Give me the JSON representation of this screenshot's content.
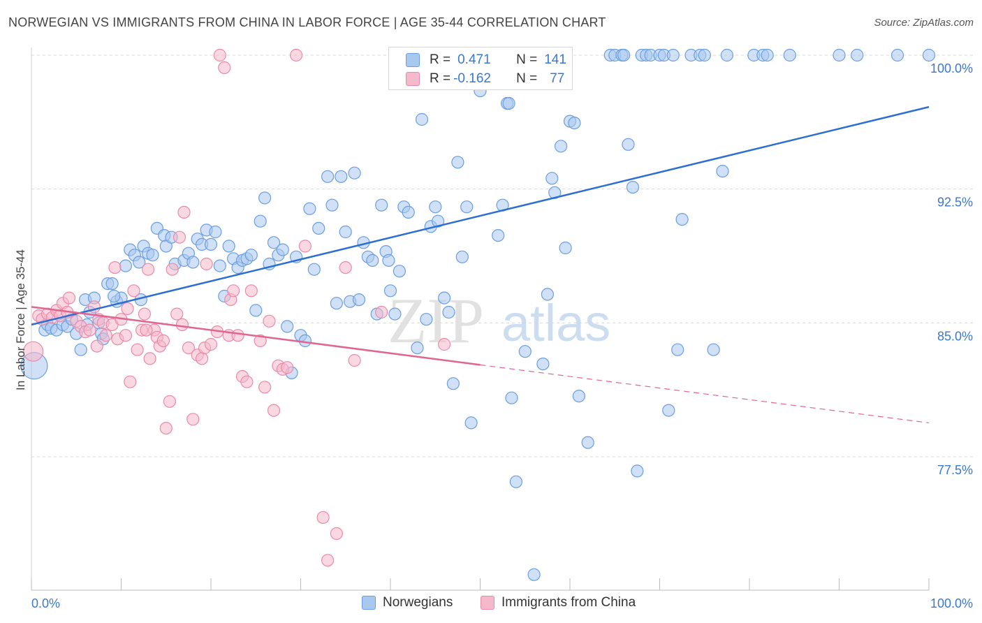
{
  "title": "NORWEGIAN VS IMMIGRANTS FROM CHINA IN LABOR FORCE | AGE 35-44 CORRELATION CHART",
  "source": "Source: ZipAtlas.com",
  "watermark": {
    "zip": "ZIP",
    "atlas": "atlas"
  },
  "colors": {
    "blue_fill": "#a9c8f0",
    "blue_stroke": "#6a9ee0",
    "blue_line": "#2c6fd0",
    "pink_fill": "#f6b8cb",
    "pink_stroke": "#ea8aaa",
    "pink_line": "#e06690",
    "axis_text": "#3a78d0",
    "grid": "#d9d9d9"
  },
  "legend": {
    "rows": [
      {
        "r_label": "R = ",
        "r_value": "0.471",
        "n_label": "N = ",
        "n_value": "141"
      },
      {
        "r_label": "R = ",
        "r_value": "-0.162",
        "n_label": "N = ",
        "n_value": "77"
      }
    ]
  },
  "chart_data": {
    "type": "scatter",
    "title": "NORWEGIAN VS IMMIGRANTS FROM CHINA IN LABOR FORCE | AGE 35-44 CORRELATION CHART",
    "xlabel": "",
    "ylabel": "In Labor Force | Age 35-44",
    "xlim": [
      0,
      100
    ],
    "ylim": [
      70.5,
      101.0
    ],
    "x_tick_labels": [
      "0.0%",
      "100.0%"
    ],
    "y_ticks": [
      77.5,
      85.0,
      92.5,
      100.0
    ],
    "y_tick_labels": [
      "77.5%",
      "85.0%",
      "92.5%",
      "100.0%"
    ],
    "grid": true,
    "legend_position": "bottom",
    "series": [
      {
        "name": "Norwegians",
        "stats": {
          "R": 0.471,
          "N": 141
        },
        "trend": {
          "x": [
            0,
            100
          ],
          "y": [
            84.9,
            97.1
          ]
        },
        "points": [
          [
            0.3,
            82.6,
            3
          ],
          [
            1.5,
            84.6,
            1
          ],
          [
            1.8,
            84.9,
            1
          ],
          [
            2.2,
            84.7,
            1
          ],
          [
            2.8,
            84.6,
            1
          ],
          [
            3.5,
            84.9,
            1
          ],
          [
            4,
            84.8,
            1
          ],
          [
            4.5,
            85.2,
            1
          ],
          [
            5,
            84.4,
            1
          ],
          [
            5.5,
            83.5,
            1
          ],
          [
            6,
            86.3,
            1
          ],
          [
            6.5,
            85.6,
            1
          ],
          [
            7,
            86.4,
            1
          ],
          [
            7.5,
            85.0,
            1
          ],
          [
            7.8,
            84.4,
            1
          ],
          [
            8,
            84.1,
            1
          ],
          [
            8.5,
            87.2,
            1
          ],
          [
            9,
            87.2,
            1
          ],
          [
            9.5,
            86.2,
            1
          ],
          [
            10,
            86.4,
            1
          ],
          [
            10.5,
            88.2,
            1
          ],
          [
            11,
            89.1,
            1
          ],
          [
            11.5,
            88.8,
            1
          ],
          [
            12,
            88.4,
            1
          ],
          [
            12.5,
            89.3,
            1
          ],
          [
            13,
            88.9,
            1
          ],
          [
            13.5,
            88.8,
            1
          ],
          [
            14,
            90.3,
            1
          ],
          [
            14.8,
            89.9,
            1
          ],
          [
            15,
            89.3,
            1
          ],
          [
            15.6,
            89.8,
            1
          ],
          [
            16,
            88.3,
            1
          ],
          [
            17,
            88.5,
            1
          ],
          [
            17.5,
            88.9,
            1
          ],
          [
            18,
            88.4,
            1
          ],
          [
            18.5,
            89.7,
            1
          ],
          [
            19,
            89.4,
            1
          ],
          [
            19.5,
            90.2,
            1
          ],
          [
            20,
            89.4,
            1
          ],
          [
            20.5,
            90.1,
            1
          ],
          [
            21,
            88.2,
            1
          ],
          [
            21.5,
            86.5,
            1
          ],
          [
            22,
            89.3,
            1
          ],
          [
            22.5,
            88.6,
            1
          ],
          [
            23,
            88.1,
            1
          ],
          [
            23.5,
            88.5,
            1
          ],
          [
            24,
            88.6,
            1
          ],
          [
            24.5,
            88.8,
            1
          ],
          [
            25,
            85.7,
            1
          ],
          [
            25.5,
            90.7,
            1
          ],
          [
            26,
            92.0,
            1
          ],
          [
            26.5,
            88.3,
            1
          ],
          [
            27,
            89.5,
            1
          ],
          [
            27.5,
            88.8,
            1
          ],
          [
            28,
            89.1,
            1
          ],
          [
            28.5,
            84.8,
            1
          ],
          [
            29,
            82.2,
            1
          ],
          [
            30,
            84.3,
            1
          ],
          [
            30.5,
            84.0,
            1
          ],
          [
            31,
            91.4,
            1
          ],
          [
            31.5,
            88.0,
            1
          ],
          [
            32,
            90.3,
            1
          ],
          [
            33,
            93.2,
            1
          ],
          [
            33.5,
            91.6,
            1
          ],
          [
            34,
            86.1,
            1
          ],
          [
            34.5,
            93.2,
            1
          ],
          [
            35,
            90.1,
            1
          ],
          [
            35.5,
            86.2,
            1
          ],
          [
            36,
            93.4,
            1
          ],
          [
            36.5,
            86.3,
            1
          ],
          [
            37,
            89.5,
            1
          ],
          [
            37.5,
            88.7,
            1
          ],
          [
            38,
            88.5,
            1
          ],
          [
            38.5,
            85.5,
            1
          ],
          [
            39,
            91.6,
            1
          ],
          [
            39.5,
            89.0,
            1
          ],
          [
            40,
            86.8,
            1
          ],
          [
            40.5,
            85.5,
            1
          ],
          [
            41,
            87.9,
            1
          ],
          [
            41.5,
            91.5,
            1
          ],
          [
            42,
            91.2,
            1
          ],
          [
            43,
            83.6,
            1
          ],
          [
            43.5,
            96.4,
            1
          ],
          [
            44,
            85.2,
            1
          ],
          [
            44.5,
            90.4,
            1
          ],
          [
            45,
            91.5,
            1
          ],
          [
            46,
            86.4,
            1
          ],
          [
            46.5,
            85.6,
            1
          ],
          [
            47,
            81.6,
            1
          ],
          [
            47.5,
            94.0,
            1
          ],
          [
            48,
            88.7,
            1
          ],
          [
            48.5,
            91.5,
            1
          ],
          [
            49,
            79.4,
            1
          ],
          [
            50,
            98.0,
            1
          ],
          [
            50.5,
            100.0,
            1
          ],
          [
            51,
            100.0,
            1
          ],
          [
            51.5,
            100.0,
            1
          ],
          [
            52,
            89.9,
            1
          ],
          [
            52.5,
            91.6,
            1
          ],
          [
            53,
            97.3,
            1
          ],
          [
            53.5,
            80.8,
            1
          ],
          [
            54,
            76.1,
            1
          ],
          [
            55,
            83.4,
            1
          ],
          [
            56,
            70.9,
            1
          ],
          [
            57,
            82.7,
            1
          ],
          [
            58,
            93.1,
            1
          ],
          [
            58.3,
            92.3,
            1
          ],
          [
            59,
            94.9,
            1
          ],
          [
            59.5,
            89.2,
            1
          ],
          [
            60,
            96.3,
            1
          ],
          [
            61,
            80.9,
            1
          ],
          [
            62,
            78.3,
            1
          ],
          [
            64.5,
            100.0,
            1
          ],
          [
            65,
            100.0,
            1
          ],
          [
            65.8,
            100.0,
            1
          ],
          [
            66,
            100.0,
            1
          ],
          [
            66.5,
            95.0,
            1
          ],
          [
            67,
            92.6,
            1
          ],
          [
            67.5,
            76.7,
            1
          ],
          [
            68,
            100.0,
            1
          ],
          [
            68.5,
            100.0,
            1
          ],
          [
            69,
            100.0,
            1
          ],
          [
            70,
            100.0,
            1
          ],
          [
            70.5,
            100.0,
            1
          ],
          [
            71,
            80.1,
            1
          ],
          [
            71.5,
            100.0,
            1
          ],
          [
            72,
            83.5,
            1
          ],
          [
            72.5,
            90.8,
            1
          ],
          [
            73.5,
            100.0,
            1
          ],
          [
            74.5,
            100.0,
            1
          ],
          [
            75,
            100.0,
            1
          ],
          [
            76,
            83.5,
            1
          ],
          [
            77,
            93.5,
            1
          ],
          [
            77.5,
            100.0,
            1
          ],
          [
            80.5,
            100.0,
            1
          ],
          [
            81.5,
            100.0,
            1
          ],
          [
            82,
            100.0,
            1
          ],
          [
            84.5,
            100.0,
            1
          ],
          [
            90,
            100.0,
            1
          ],
          [
            92,
            100.0,
            1
          ],
          [
            96.5,
            100.0,
            1
          ],
          [
            100,
            100.0,
            1
          ],
          [
            60.5,
            96.2,
            1
          ],
          [
            53.2,
            97.3,
            1
          ],
          [
            57.5,
            86.6,
            1
          ],
          [
            29.5,
            88.7,
            1
          ],
          [
            39.8,
            88.5,
            1
          ],
          [
            45.3,
            90.7,
            1
          ],
          [
            12.2,
            86.3,
            1
          ],
          [
            9.2,
            86.5,
            1
          ],
          [
            6.2,
            84.9,
            1
          ]
        ]
      },
      {
        "name": "Immigrants from China",
        "stats": {
          "R": -0.162,
          "N": 77
        },
        "trend": {
          "x": [
            0,
            100
          ],
          "y": [
            85.9,
            79.4
          ]
        },
        "trend_solid_until_x": 50,
        "points": [
          [
            0.2,
            83.4,
            2
          ],
          [
            0.8,
            85.4,
            1
          ],
          [
            1.2,
            85.2,
            1
          ],
          [
            1.8,
            85.5,
            1
          ],
          [
            2.3,
            85.3,
            1
          ],
          [
            2.8,
            85.7,
            1
          ],
          [
            3.2,
            85.4,
            1
          ],
          [
            3.5,
            86.1,
            1
          ],
          [
            4,
            85.6,
            1
          ],
          [
            4.2,
            86.4,
            1
          ],
          [
            5,
            85.1,
            1
          ],
          [
            5.5,
            84.8,
            1
          ],
          [
            6,
            84.5,
            1
          ],
          [
            6.5,
            84.6,
            1
          ],
          [
            7,
            85.9,
            1
          ],
          [
            7.3,
            83.7,
            1
          ],
          [
            7.5,
            85.2,
            1
          ],
          [
            8,
            85.0,
            1
          ],
          [
            8.3,
            84.3,
            1
          ],
          [
            9,
            84.9,
            1
          ],
          [
            9.3,
            88.1,
            1
          ],
          [
            9.6,
            84.1,
            1
          ],
          [
            10,
            85.2,
            1
          ],
          [
            10.5,
            84.3,
            1
          ],
          [
            10.7,
            85.8,
            1
          ],
          [
            11,
            81.7,
            1
          ],
          [
            11.4,
            86.8,
            1
          ],
          [
            11.8,
            83.5,
            1
          ],
          [
            12.3,
            84.6,
            1
          ],
          [
            12.6,
            85.5,
            1
          ],
          [
            13,
            88.0,
            1
          ],
          [
            13.2,
            83.0,
            1
          ],
          [
            13.7,
            84.6,
            1
          ],
          [
            14,
            84.2,
            1
          ],
          [
            14.3,
            83.7,
            1
          ],
          [
            14.7,
            84.0,
            1
          ],
          [
            15,
            79.1,
            1
          ],
          [
            15.4,
            80.6,
            1
          ],
          [
            15.7,
            88.0,
            1
          ],
          [
            16.2,
            85.5,
            1
          ],
          [
            16.5,
            89.8,
            1
          ],
          [
            16.8,
            84.9,
            1
          ],
          [
            17,
            91.2,
            1
          ],
          [
            17.5,
            83.6,
            1
          ],
          [
            18,
            79.6,
            1
          ],
          [
            18.5,
            83.2,
            1
          ],
          [
            19,
            83.0,
            1
          ],
          [
            19.3,
            83.6,
            1
          ],
          [
            19.5,
            88.3,
            1
          ],
          [
            20,
            83.8,
            1
          ],
          [
            21,
            100.0,
            1
          ],
          [
            21.5,
            99.3,
            1
          ],
          [
            22,
            84.3,
            1
          ],
          [
            22.2,
            86.3,
            1
          ],
          [
            22.5,
            86.8,
            1
          ],
          [
            23,
            84.3,
            1
          ],
          [
            23.5,
            82.0,
            1
          ],
          [
            24,
            81.7,
            1
          ],
          [
            24.5,
            86.8,
            1
          ],
          [
            25.5,
            84.0,
            1
          ],
          [
            26,
            81.4,
            1
          ],
          [
            26.5,
            85.1,
            1
          ],
          [
            27,
            80.1,
            1
          ],
          [
            27.5,
            82.6,
            1
          ],
          [
            28,
            82.4,
            1
          ],
          [
            28.5,
            82.5,
            1
          ],
          [
            29.5,
            100.0,
            1
          ],
          [
            30.5,
            89.3,
            1
          ],
          [
            32.5,
            74.1,
            1
          ],
          [
            33,
            71.7,
            1
          ],
          [
            34,
            73.2,
            1
          ],
          [
            35,
            88.1,
            1
          ],
          [
            36,
            82.9,
            1
          ],
          [
            39,
            85.6,
            1
          ],
          [
            46,
            83.8,
            1
          ],
          [
            12.8,
            84.6,
            1
          ],
          [
            20.7,
            84.5,
            1
          ]
        ]
      }
    ]
  }
}
